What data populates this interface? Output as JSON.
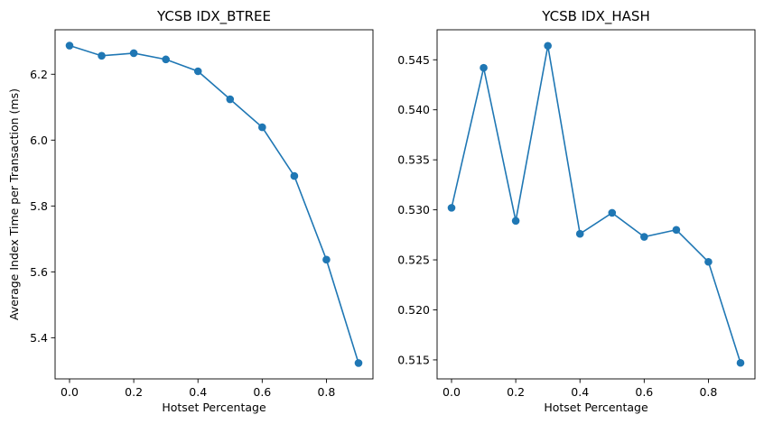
{
  "figure": {
    "ylabel": "Average Index Time per Transaction (ms)",
    "line_color": "#1f77b4"
  },
  "chart_data": [
    {
      "type": "line",
      "title": "YCSB IDX_BTREE",
      "xlabel": "Hotset Percentage",
      "ylabel": "Average Index Time per Transaction (ms)",
      "x": [
        0.0,
        0.1,
        0.2,
        0.3,
        0.4,
        0.5,
        0.6,
        0.7,
        0.8,
        0.9
      ],
      "series": [
        {
          "values": [
            6.287,
            6.256,
            6.264,
            6.245,
            6.209,
            6.124,
            6.039,
            5.891,
            5.637,
            5.323
          ]
        }
      ],
      "xlim": [
        -0.045,
        0.945
      ],
      "ylim": [
        5.275,
        6.335
      ],
      "xticks": [
        0.0,
        0.2,
        0.4,
        0.6,
        0.8
      ],
      "xtick_labels": [
        "0.0",
        "0.2",
        "0.4",
        "0.6",
        "0.8"
      ],
      "yticks": [
        5.4,
        5.6,
        5.8,
        6.0,
        6.2
      ],
      "ytick_labels": [
        "5.4",
        "5.6",
        "5.8",
        "6.0",
        "6.2"
      ],
      "marker": "circle",
      "grid": false
    },
    {
      "type": "line",
      "title": "YCSB IDX_HASH",
      "xlabel": "Hotset Percentage",
      "ylabel": "",
      "x": [
        0.0,
        0.1,
        0.2,
        0.3,
        0.4,
        0.5,
        0.6,
        0.7,
        0.8,
        0.9
      ],
      "series": [
        {
          "values": [
            0.5302,
            0.5442,
            0.5289,
            0.5464,
            0.5276,
            0.5297,
            0.5273,
            0.528,
            0.5248,
            0.5147
          ]
        }
      ],
      "xlim": [
        -0.045,
        0.945
      ],
      "ylim": [
        0.5131,
        0.548
      ],
      "xticks": [
        0.0,
        0.2,
        0.4,
        0.6,
        0.8
      ],
      "xtick_labels": [
        "0.0",
        "0.2",
        "0.4",
        "0.6",
        "0.8"
      ],
      "yticks": [
        0.515,
        0.52,
        0.525,
        0.53,
        0.535,
        0.54,
        0.545
      ],
      "ytick_labels": [
        "0.515",
        "0.520",
        "0.525",
        "0.530",
        "0.535",
        "0.540",
        "0.545"
      ],
      "marker": "circle",
      "grid": false
    }
  ]
}
